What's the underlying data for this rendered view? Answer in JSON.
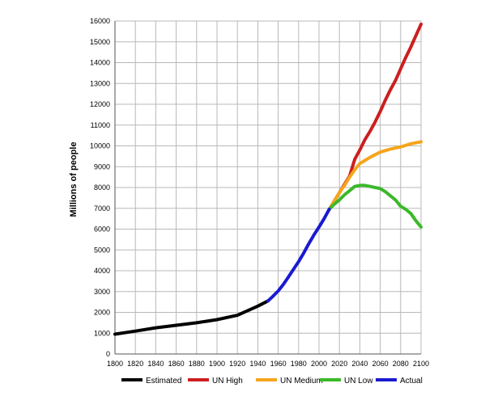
{
  "chart_data": {
    "type": "line",
    "title": "",
    "xlabel": "",
    "ylabel": "Millions of people",
    "xlim": [
      1800,
      2100
    ],
    "ylim": [
      0,
      16000
    ],
    "grid": true,
    "legend_position": "bottom",
    "x_ticks": [
      "1800",
      "1820",
      "1840",
      "1860",
      "1880",
      "1900",
      "1920",
      "1940",
      "1960",
      "1980",
      "2000",
      "2020",
      "2040",
      "2060",
      "2080",
      "2100"
    ],
    "y_ticks": [
      "0",
      "1000",
      "2000",
      "3000",
      "4000",
      "5000",
      "6000",
      "7000",
      "8000",
      "9000",
      "10000",
      "11000",
      "12000",
      "13000",
      "14000",
      "15000",
      "16000"
    ],
    "series": [
      {
        "name": "Estimated",
        "color": "#000000",
        "points": [
          [
            1800,
            950
          ],
          [
            1820,
            1100
          ],
          [
            1840,
            1260
          ],
          [
            1860,
            1380
          ],
          [
            1880,
            1500
          ],
          [
            1900,
            1650
          ],
          [
            1920,
            1860
          ],
          [
            1940,
            2300
          ],
          [
            1950,
            2550
          ]
        ]
      },
      {
        "name": "UN High",
        "color": "#cc1f1f",
        "points": [
          [
            2010,
            6950
          ],
          [
            2015,
            7350
          ],
          [
            2020,
            7750
          ],
          [
            2025,
            8150
          ],
          [
            2030,
            8550
          ],
          [
            2035,
            9350
          ],
          [
            2040,
            9800
          ],
          [
            2045,
            10300
          ],
          [
            2050,
            10700
          ],
          [
            2055,
            11150
          ],
          [
            2060,
            11650
          ],
          [
            2065,
            12200
          ],
          [
            2070,
            12700
          ],
          [
            2075,
            13150
          ],
          [
            2080,
            13700
          ],
          [
            2085,
            14250
          ],
          [
            2090,
            14750
          ],
          [
            2095,
            15300
          ],
          [
            2100,
            15850
          ]
        ]
      },
      {
        "name": "UN Medium",
        "color": "#f5a51c",
        "points": [
          [
            2010,
            6950
          ],
          [
            2015,
            7350
          ],
          [
            2020,
            7750
          ],
          [
            2025,
            8100
          ],
          [
            2030,
            8500
          ],
          [
            2035,
            8850
          ],
          [
            2040,
            9150
          ],
          [
            2045,
            9300
          ],
          [
            2050,
            9450
          ],
          [
            2060,
            9700
          ],
          [
            2070,
            9850
          ],
          [
            2080,
            9950
          ],
          [
            2090,
            10100
          ],
          [
            2100,
            10200
          ]
        ]
      },
      {
        "name": "UN Low",
        "color": "#3cb82a",
        "points": [
          [
            2010,
            6950
          ],
          [
            2015,
            7200
          ],
          [
            2020,
            7400
          ],
          [
            2025,
            7650
          ],
          [
            2030,
            7850
          ],
          [
            2035,
            8050
          ],
          [
            2040,
            8100
          ],
          [
            2045,
            8100
          ],
          [
            2050,
            8050
          ],
          [
            2055,
            8000
          ],
          [
            2060,
            7950
          ],
          [
            2065,
            7800
          ],
          [
            2070,
            7600
          ],
          [
            2075,
            7400
          ],
          [
            2080,
            7100
          ],
          [
            2085,
            6950
          ],
          [
            2090,
            6750
          ],
          [
            2095,
            6400
          ],
          [
            2100,
            6100
          ]
        ]
      },
      {
        "name": "Actual",
        "color": "#1a1ad1",
        "points": [
          [
            1950,
            2550
          ],
          [
            1955,
            2780
          ],
          [
            1960,
            3030
          ],
          [
            1965,
            3340
          ],
          [
            1970,
            3700
          ],
          [
            1975,
            4070
          ],
          [
            1980,
            4440
          ],
          [
            1985,
            4850
          ],
          [
            1990,
            5300
          ],
          [
            1995,
            5720
          ],
          [
            2000,
            6100
          ],
          [
            2005,
            6500
          ],
          [
            2010,
            6950
          ]
        ]
      }
    ]
  }
}
